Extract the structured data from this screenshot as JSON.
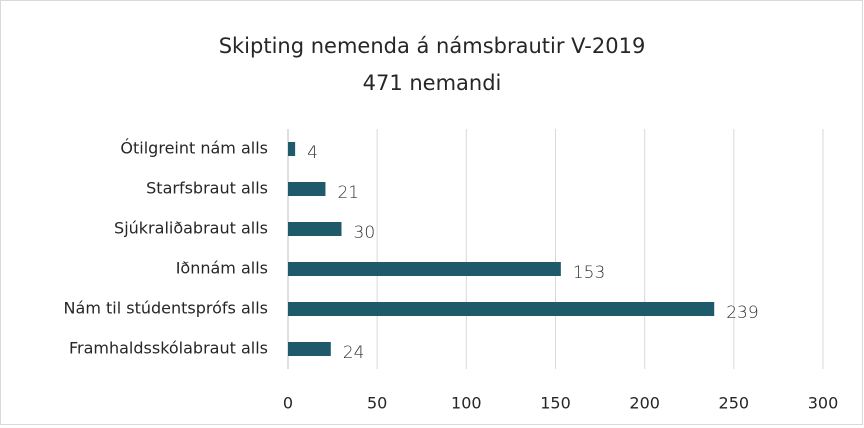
{
  "chart_data": {
    "type": "bar",
    "orientation": "horizontal",
    "title": "Skipting nemenda á námsbrautir V-2019",
    "subtitle": "471 nemandi",
    "categories": [
      "Ótilgreint nám alls",
      "Starfsbraut alls",
      "Sjúkraliðabraut alls",
      "Iðnnám alls",
      "Nám til stúdentsprófs alls",
      "Framhaldsskólabraut alls"
    ],
    "values": [
      4,
      21,
      30,
      153,
      239,
      24
    ],
    "color": "#1f5a6b",
    "xlim": [
      0,
      300
    ],
    "xticks": [
      0,
      50,
      100,
      150,
      200,
      250,
      300
    ],
    "grid": true
  }
}
